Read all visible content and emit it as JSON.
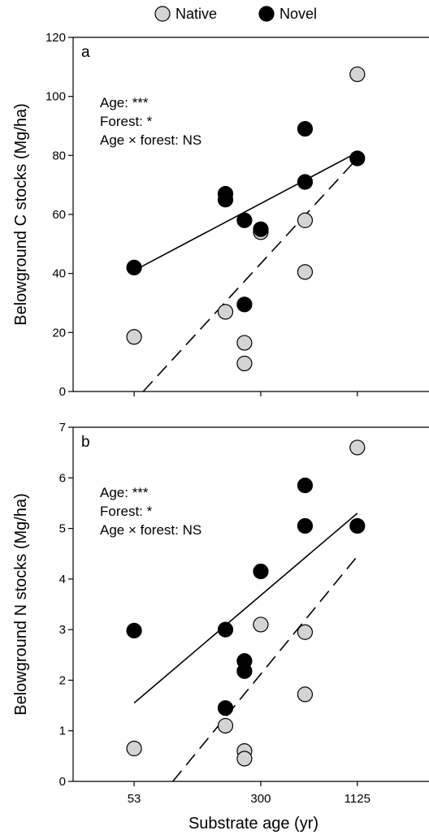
{
  "chart_data": {
    "type": "scatter",
    "legend": {
      "placement": "top-center",
      "entries": [
        {
          "name": "Native",
          "color": "#d4d4d4"
        },
        {
          "name": "Novel",
          "color": "#000000"
        }
      ]
    },
    "xlabel": "Substrate age (yr)",
    "x_scale": "log",
    "x_ticks": [
      53,
      300,
      1125
    ],
    "x_tick_labels": [
      "53",
      "300",
      "1125"
    ],
    "xlim": [
      23,
      3000
    ],
    "panels": [
      {
        "label": "a",
        "ylabel": "Belowground C stocks (Mg/ha)",
        "ylim": [
          0,
          120
        ],
        "y_ticks": [
          0,
          20,
          40,
          60,
          80,
          100,
          120
        ],
        "annotations": [
          "Age: ***",
          "Forest: *",
          "Age × forest: NS"
        ],
        "series": [
          {
            "name": "Native",
            "color": "#d4d4d4",
            "line_style": "dashed",
            "fit": [
              [
                60,
                0
              ],
              [
                1125,
                79
              ]
            ],
            "points": [
              [
                53,
                18.5
              ],
              [
                185,
                27
              ],
              [
                240,
                16.5
              ],
              [
                240,
                9.5
              ],
              [
                300,
                54
              ],
              [
                550,
                58
              ],
              [
                550,
                40.5
              ],
              [
                1125,
                107.5
              ]
            ]
          },
          {
            "name": "Novel",
            "color": "#000000",
            "line_style": "solid",
            "fit": [
              [
                53,
                41
              ],
              [
                1125,
                81
              ]
            ],
            "points": [
              [
                53,
                42
              ],
              [
                185,
                67
              ],
              [
                185,
                65
              ],
              [
                240,
                58
              ],
              [
                240,
                29.5
              ],
              [
                300,
                55
              ],
              [
                550,
                89
              ],
              [
                550,
                71
              ],
              [
                1125,
                79
              ]
            ]
          }
        ]
      },
      {
        "label": "b",
        "ylabel": "Belowground N stocks (Mg/ha)",
        "ylim": [
          0,
          7
        ],
        "y_ticks": [
          0,
          1,
          2,
          3,
          4,
          5,
          6,
          7
        ],
        "annotations": [
          "Age: ***",
          "Forest: *",
          "Age × forest: NS"
        ],
        "series": [
          {
            "name": "Native",
            "color": "#d4d4d4",
            "line_style": "dashed",
            "fit": [
              [
                90,
                0
              ],
              [
                1125,
                4.45
              ]
            ],
            "points": [
              [
                53,
                0.65
              ],
              [
                185,
                1.1
              ],
              [
                240,
                0.6
              ],
              [
                240,
                0.45
              ],
              [
                300,
                3.1
              ],
              [
                550,
                2.95
              ],
              [
                550,
                1.72
              ],
              [
                1125,
                6.6
              ]
            ]
          },
          {
            "name": "Novel",
            "color": "#000000",
            "line_style": "solid",
            "fit": [
              [
                53,
                1.55
              ],
              [
                1125,
                5.3
              ]
            ],
            "points": [
              [
                53,
                2.98
              ],
              [
                185,
                3.0
              ],
              [
                185,
                1.45
              ],
              [
                240,
                2.38
              ],
              [
                240,
                2.18
              ],
              [
                300,
                4.15
              ],
              [
                550,
                5.85
              ],
              [
                550,
                5.05
              ],
              [
                1125,
                5.05
              ]
            ]
          }
        ]
      }
    ]
  }
}
